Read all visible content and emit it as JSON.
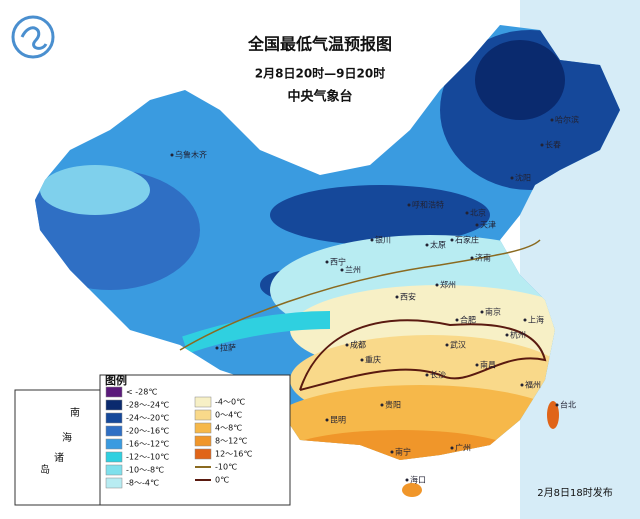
{
  "header": {
    "title": "全国最低气温预报图",
    "period": "2月8日20时—9日20时",
    "issuer": "中央气象台"
  },
  "cities": [
    "乌鲁木齐",
    "哈尔滨",
    "长春",
    "沈阳",
    "呼和浩特",
    "北京",
    "天津",
    "石家庄",
    "太原",
    "济南",
    "银川",
    "西宁",
    "兰州",
    "西安",
    "郑州",
    "合肥",
    "南京",
    "上海",
    "杭州",
    "武汉",
    "拉萨",
    "成都",
    "重庆",
    "长沙",
    "南昌",
    "贵阳",
    "昆明",
    "福州",
    "台北",
    "南宁",
    "广州",
    "海口"
  ],
  "legend": {
    "title": "图例",
    "items": [
      {
        "label": "< -28℃",
        "color": "#5a1a7a"
      },
      {
        "label": "-28～-24℃",
        "color": "#0a2a6e"
      },
      {
        "label": "-24～-20℃",
        "color": "#15489a"
      },
      {
        "label": "-20～-16℃",
        "color": "#2f6fc4"
      },
      {
        "label": "-16～-12℃",
        "color": "#3a9be0"
      },
      {
        "label": "-12～-10℃",
        "color": "#2fd0e0"
      },
      {
        "label": "-10～-8℃",
        "color": "#7fe0ec"
      },
      {
        "label": "-8～-4℃",
        "color": "#b8ecf2"
      },
      {
        "label": "-4～0℃",
        "color": "#f7f0c6"
      },
      {
        "label": "0～4℃",
        "color": "#f9d98a"
      },
      {
        "label": "4～8℃",
        "color": "#f6b84a"
      },
      {
        "label": "8～12℃",
        "color": "#f0962a"
      },
      {
        "label": "12～16℃",
        "color": "#e06418"
      }
    ],
    "lines": [
      {
        "label": "-10℃",
        "color": "#8a6a20"
      },
      {
        "label": "0℃",
        "color": "#5a1a10"
      }
    ]
  },
  "inset": {
    "label": [
      "南",
      "海",
      "诸",
      "岛"
    ]
  },
  "footer": {
    "issued": "2月8日18时发布"
  }
}
